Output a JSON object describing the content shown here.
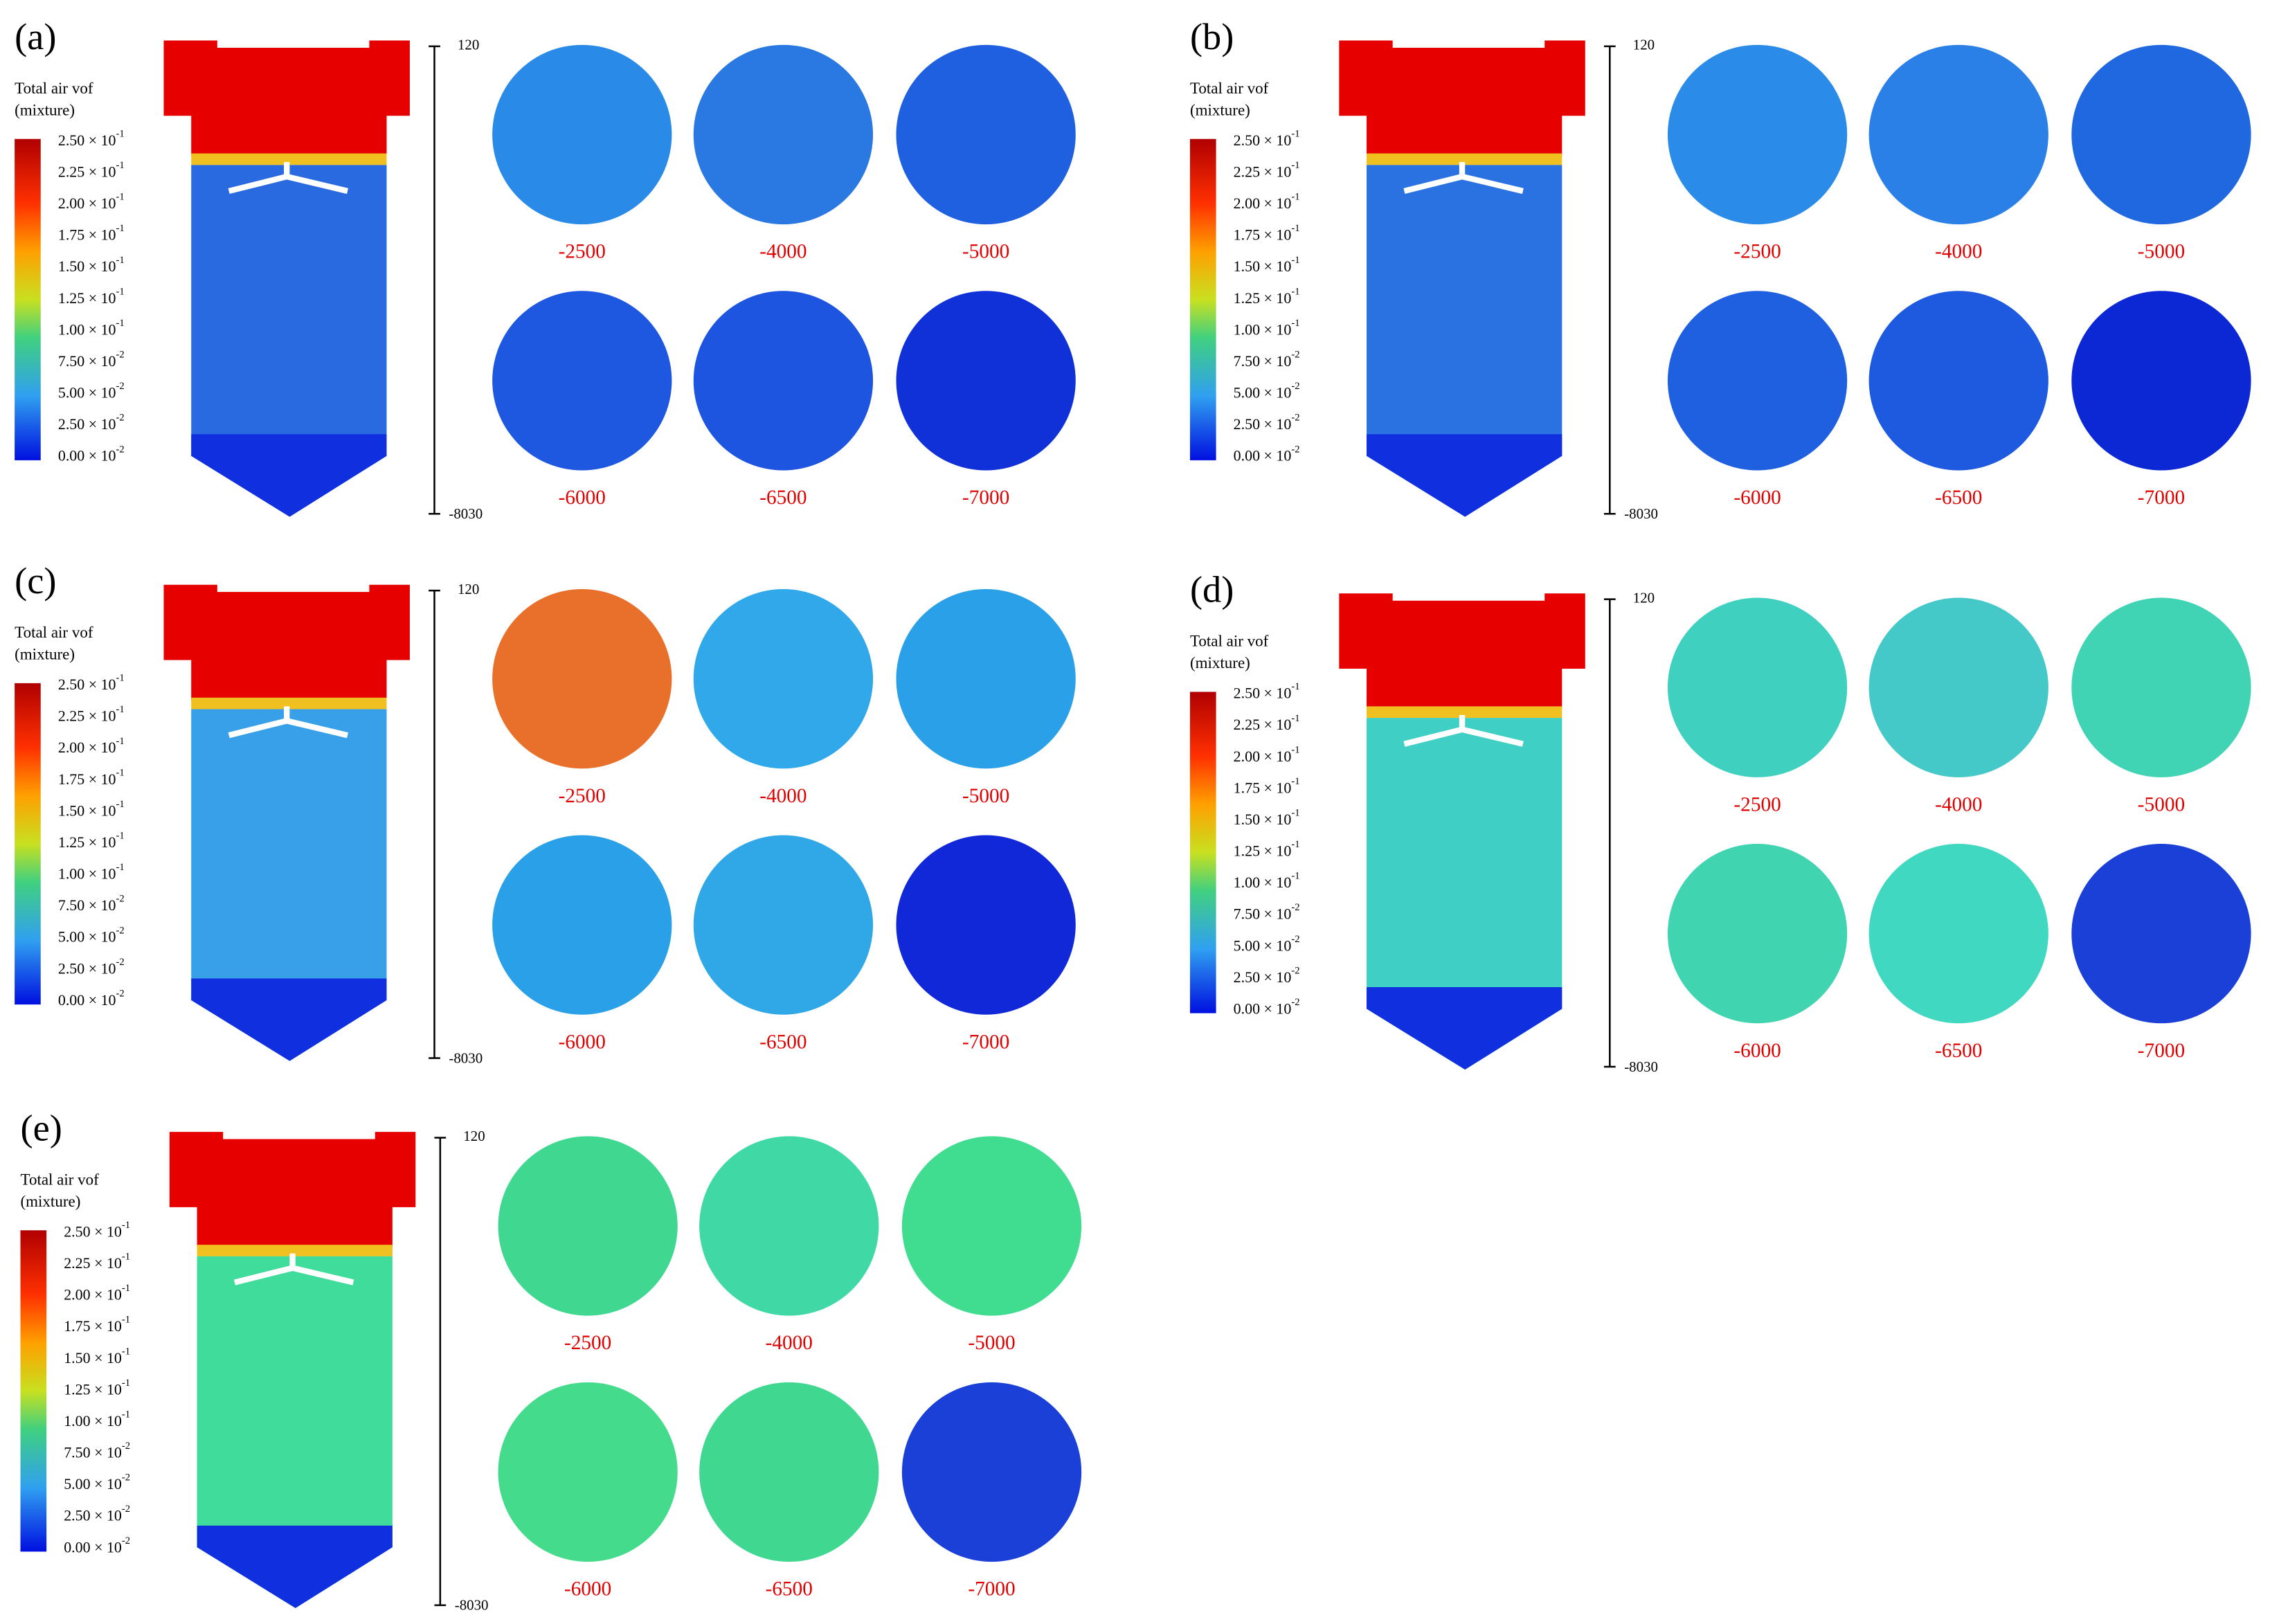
{
  "panels": [
    {
      "label": "(a)",
      "body_color": "#2a6ae0",
      "slice_colors": [
        "#2a8ae8",
        "#2a78e2",
        "#1e60e0",
        "#1e58e0",
        "#1e55e0",
        "#1030d8"
      ]
    },
    {
      "label": "(b)",
      "body_color": "#2a72e2",
      "slice_colors": [
        "#2a8ce8",
        "#2a80e6",
        "#2068e0",
        "#1e60e0",
        "#1e5ae0",
        "#0c28d4"
      ]
    },
    {
      "label": "(c)",
      "body_color": "#38a0e8",
      "slice_colors": [
        "#e8702a",
        "#30a8ea",
        "#2aa0e8",
        "#2aa0e8",
        "#30a8e8",
        "#1028d8"
      ]
    },
    {
      "label": "(d)",
      "body_color": "#40cfc4",
      "slice_colors": [
        "#40d0c0",
        "#44c8c8",
        "#40d4b4",
        "#40d4b0",
        "#40d8c0",
        "#1a40d8"
      ]
    },
    {
      "label": "(e)",
      "body_color": "#40dc9c",
      "slice_colors": [
        "#40d890",
        "#40d8a4",
        "#40dc90",
        "#44dc8c",
        "#40d890",
        "#1a40d8"
      ]
    }
  ],
  "legend": {
    "title": [
      "Total air vof",
      "(mixture)"
    ],
    "ticks": [
      {
        "mantissa": "2.50 × 10",
        "exponent": "-1"
      },
      {
        "mantissa": "2.25 × 10",
        "exponent": "-1"
      },
      {
        "mantissa": "2.00 × 10",
        "exponent": "-1"
      },
      {
        "mantissa": "1.75 × 10",
        "exponent": "-1"
      },
      {
        "mantissa": "1.50 × 10",
        "exponent": "-1"
      },
      {
        "mantissa": "1.25 × 10",
        "exponent": "-1"
      },
      {
        "mantissa": "1.00 × 10",
        "exponent": "-1"
      },
      {
        "mantissa": "7.50 × 10",
        "exponent": "-2"
      },
      {
        "mantissa": "5.00 × 10",
        "exponent": "-2"
      },
      {
        "mantissa": "2.50 × 10",
        "exponent": "-2"
      },
      {
        "mantissa": "0.00 × 10",
        "exponent": "-2"
      }
    ]
  },
  "scale": {
    "top": "120",
    "bottom": "-8030"
  },
  "slices": [
    "-2500",
    "-4000",
    "-5000",
    "-6000",
    "-6500",
    "-7000"
  ]
}
